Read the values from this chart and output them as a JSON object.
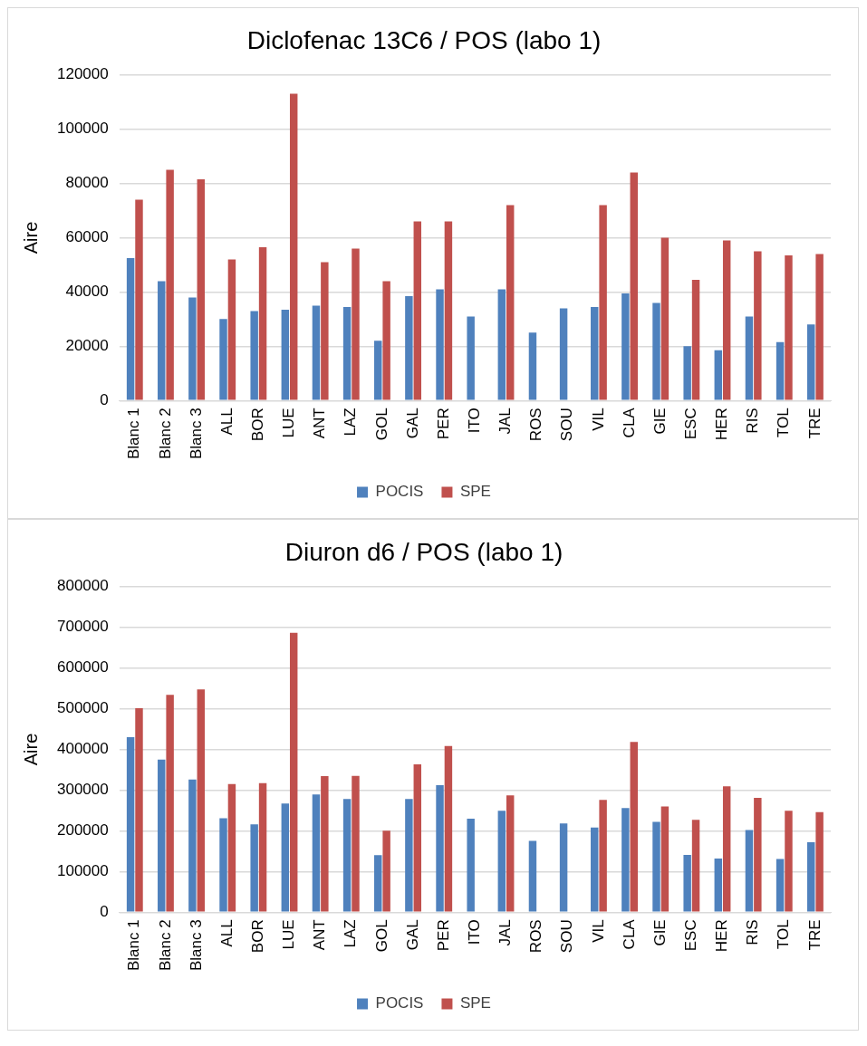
{
  "chart_data": [
    {
      "type": "bar",
      "title": "Diclofenac 13C6 / POS (labo 1)",
      "ylabel": "Aire",
      "categories": [
        "Blanc 1",
        "Blanc 2",
        "Blanc 3",
        "ALL",
        "BOR",
        "LUE",
        "ANT",
        "LAZ",
        "GOL",
        "GAL",
        "PER",
        "ITO",
        "JAL",
        "ROS",
        "SOU",
        "VIL",
        "CLA",
        "GIE",
        "ESC",
        "HER",
        "RIS",
        "TOL",
        "TRE"
      ],
      "series": [
        {
          "name": "POCIS",
          "color": "#4f81bd",
          "values": [
            52500,
            44000,
            38000,
            30000,
            33000,
            33500,
            35000,
            34500,
            22000,
            38500,
            41000,
            31000,
            41000,
            25000,
            34000,
            34500,
            39500,
            36000,
            20000,
            18500,
            31000,
            21500,
            28000
          ]
        },
        {
          "name": "SPE",
          "color": "#c0504d",
          "values": [
            74000,
            85000,
            81500,
            52000,
            56500,
            113000,
            51000,
            56000,
            44000,
            66000,
            66000,
            null,
            72000,
            null,
            null,
            72000,
            84000,
            60000,
            44500,
            59000,
            55000,
            53500,
            54000
          ]
        }
      ],
      "ylim": [
        0,
        120000
      ],
      "yticks": [
        0,
        20000,
        40000,
        60000,
        80000,
        100000,
        120000
      ],
      "grid": "y",
      "legend": "bottom"
    },
    {
      "type": "bar",
      "title": "Diuron d6 / POS (labo 1)",
      "ylabel": "Aire",
      "categories": [
        "Blanc 1",
        "Blanc 2",
        "Blanc 3",
        "ALL",
        "BOR",
        "LUE",
        "ANT",
        "LAZ",
        "GOL",
        "GAL",
        "PER",
        "ITO",
        "JAL",
        "ROS",
        "SOU",
        "VIL",
        "CLA",
        "GIE",
        "ESC",
        "HER",
        "RIS",
        "TOL",
        "TRE"
      ],
      "series": [
        {
          "name": "POCIS",
          "color": "#4f81bd",
          "values": [
            430000,
            375000,
            326000,
            231000,
            216000,
            267000,
            289000,
            278000,
            140000,
            278000,
            312000,
            230000,
            249000,
            175000,
            218000,
            208000,
            256000,
            222000,
            141000,
            132000,
            202000,
            131000,
            172000
          ]
        },
        {
          "name": "SPE",
          "color": "#c0504d",
          "values": [
            501000,
            534000,
            547000,
            315000,
            317000,
            686000,
            334000,
            335000,
            200000,
            363000,
            408000,
            null,
            287000,
            null,
            null,
            276000,
            418000,
            260000,
            227000,
            309000,
            281000,
            249000,
            246000
          ]
        }
      ],
      "ylim": [
        0,
        800000
      ],
      "yticks": [
        0,
        100000,
        200000,
        300000,
        400000,
        500000,
        600000,
        700000,
        800000
      ],
      "grid": "y",
      "legend": "bottom"
    }
  ]
}
